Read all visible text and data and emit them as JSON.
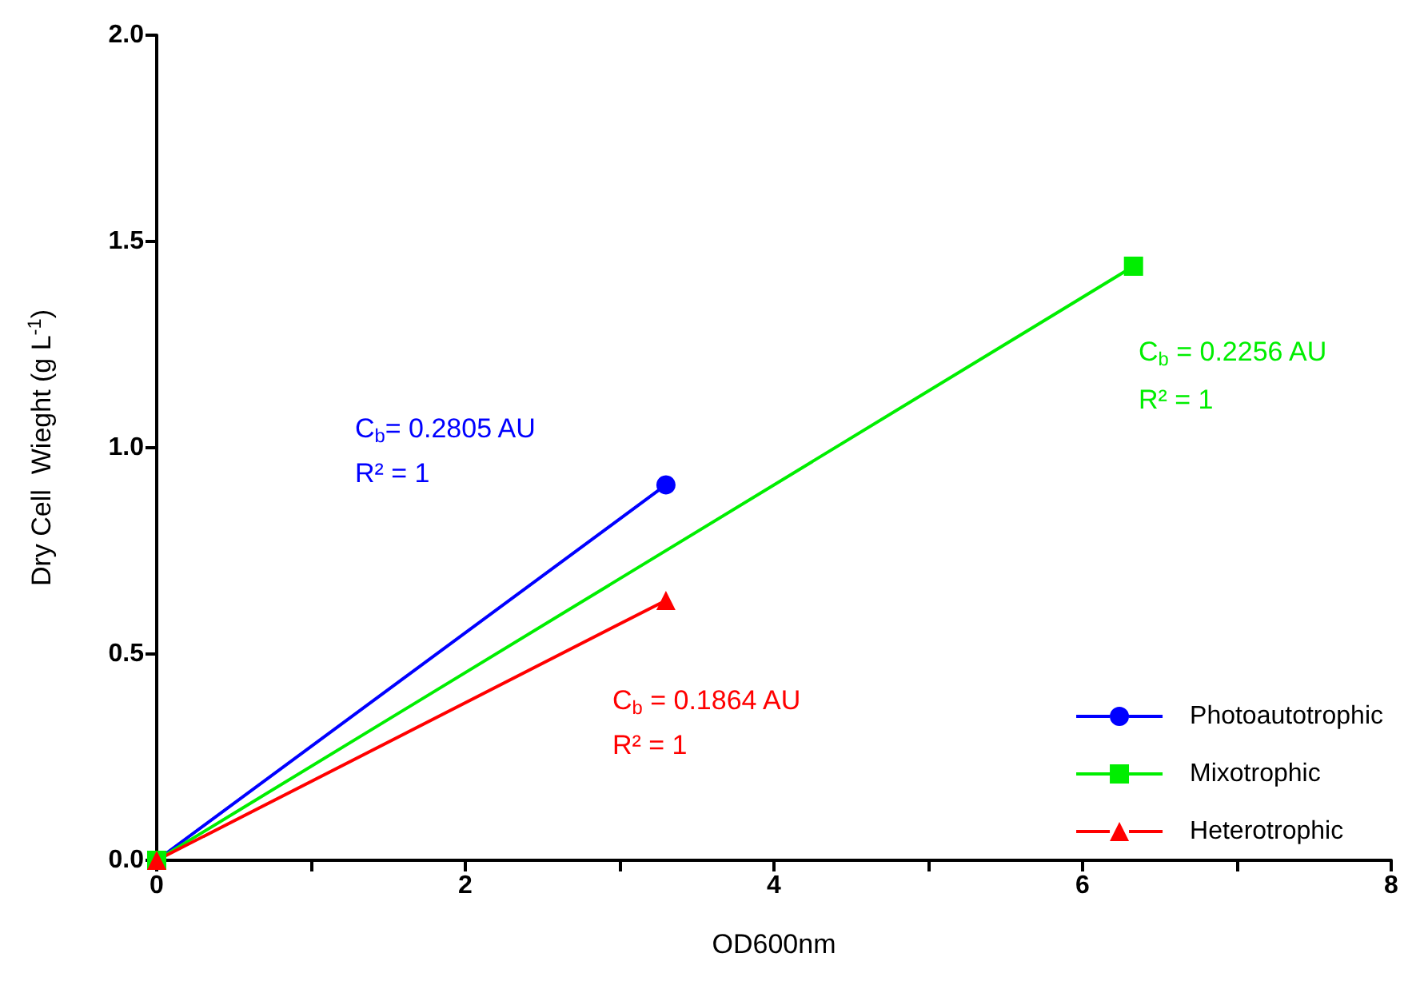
{
  "chart_data": {
    "type": "line",
    "xlabel": "OD600nm",
    "ylabel": "Dry Cell  Wieght (g L$^{-1}$)",
    "xlim": [
      0,
      8
    ],
    "xticks": [
      0,
      {
        "value": 1,
        "label": null
      },
      2,
      {
        "value": 3,
        "label": null
      },
      4,
      {
        "value": 5,
        "label": null
      },
      6,
      {
        "value": 7,
        "label": null
      },
      8
    ],
    "ylim": [
      0,
      2
    ],
    "yticks": [
      {
        "value": 0,
        "label": "0.0"
      },
      {
        "value": 0.5,
        "label": "0.5"
      },
      {
        "value": 1,
        "label": "1.0"
      },
      {
        "value": 1.5,
        "label": "1.5"
      },
      {
        "value": 2,
        "label": "2.0"
      }
    ],
    "series": [
      {
        "name": "Photoautotrophic",
        "color": "#0000ff",
        "marker": "circle",
        "x": [
          0,
          3.3
        ],
        "values": [
          0,
          0.91
        ]
      },
      {
        "name": "Mixotrophic",
        "color": "#00ee00",
        "marker": "square",
        "x": [
          0,
          6.33
        ],
        "values": [
          0,
          1.44
        ]
      },
      {
        "name": "Heterotrophic",
        "color": "#ff0000",
        "marker": "triangle",
        "x": [
          0,
          3.3
        ],
        "values": [
          0,
          0.63
        ]
      }
    ],
    "annotations": [
      "C$_{b}$= 0.2805 AU",
      "R² = 1",
      "C$_{b}$ = 0.2256 AU",
      "R² = 1",
      "C$_{b}$ = 0.1864 AU",
      "R² = 1"
    ],
    "grid": false,
    "legend": "bottom right",
    "line_style": "solid"
  }
}
